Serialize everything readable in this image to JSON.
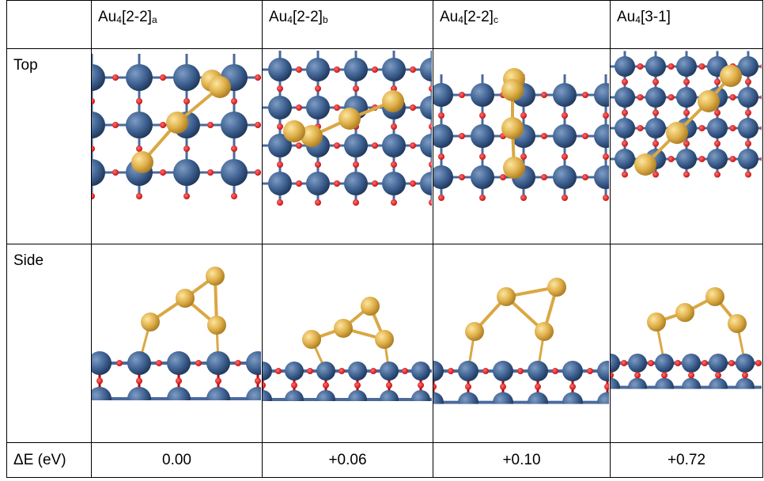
{
  "table": {
    "headers": [
      {
        "element": "Au",
        "count": "4",
        "motif": "[2-2]",
        "variant": "a"
      },
      {
        "element": "Au",
        "count": "4",
        "motif": "[2-2]",
        "variant": "b"
      },
      {
        "element": "Au",
        "count": "4",
        "motif": "[2-2]",
        "variant": "c"
      },
      {
        "element": "Au",
        "count": "4",
        "motif": "[3-1]"
      }
    ],
    "row_labels": [
      "Top",
      "Side",
      "ΔE (eV)"
    ],
    "energies": [
      "0.00",
      "+0.06",
      "+0.10",
      "+0.72"
    ]
  }
}
